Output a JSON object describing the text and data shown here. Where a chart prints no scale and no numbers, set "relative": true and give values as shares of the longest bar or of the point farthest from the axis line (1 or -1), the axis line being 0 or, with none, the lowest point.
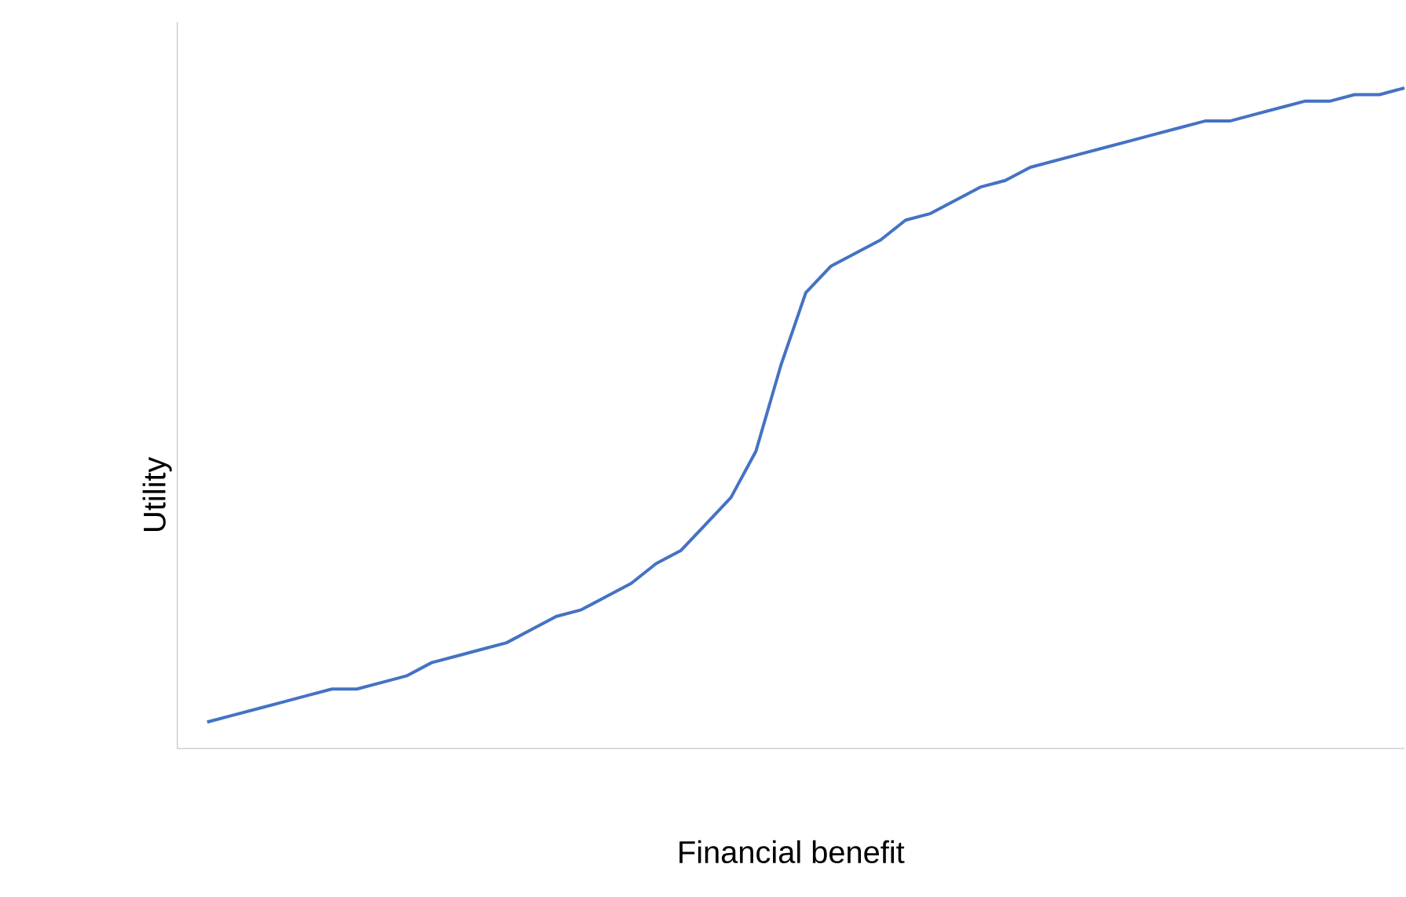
{
  "chart_data": {
    "type": "line",
    "relative": true,
    "xlabel": "Financial benefit",
    "ylabel": "Utility",
    "color": "#4472c4",
    "categories": [
      null,
      null,
      null,
      null,
      null,
      null,
      null,
      null,
      null,
      null,
      null,
      null,
      null,
      null,
      null,
      null,
      null,
      null,
      null,
      null,
      null,
      null,
      null,
      null,
      null,
      null,
      null,
      null,
      null,
      null,
      null,
      null,
      null,
      null,
      null,
      null,
      null,
      null,
      null,
      null,
      null,
      null,
      null,
      null,
      null,
      null,
      null,
      null,
      null
    ],
    "values": [
      0.04,
      0.05,
      0.06,
      0.07,
      0.08,
      0.09,
      0.09,
      0.1,
      0.11,
      0.13,
      0.14,
      0.15,
      0.16,
      0.18,
      0.2,
      0.21,
      0.23,
      0.25,
      0.28,
      0.3,
      0.34,
      0.38,
      0.45,
      0.58,
      0.69,
      0.73,
      0.75,
      0.77,
      0.8,
      0.81,
      0.83,
      0.85,
      0.86,
      0.88,
      0.89,
      0.9,
      0.91,
      0.92,
      0.93,
      0.94,
      0.95,
      0.95,
      0.96,
      0.97,
      0.98,
      0.98,
      0.99,
      0.99,
      1.0
    ]
  }
}
